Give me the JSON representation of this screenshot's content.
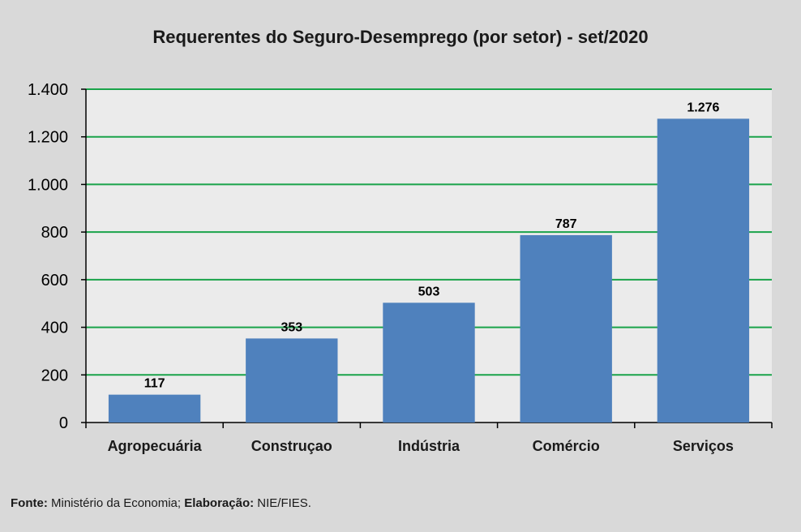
{
  "chart_data": {
    "type": "bar",
    "title": "Requerentes do Seguro-Desemprego (por setor) - set/2020",
    "categories": [
      "Agropecuária",
      "Construçao",
      "Indústria",
      "Comércio",
      "Serviços"
    ],
    "values": [
      117,
      353,
      503,
      787,
      1276
    ],
    "data_labels": [
      "117",
      "353",
      "503",
      "787",
      "1.276"
    ],
    "ylim": [
      0,
      1400
    ],
    "yticks": [
      0,
      200,
      400,
      600,
      800,
      1000,
      1200,
      1400
    ],
    "ytick_labels": [
      "0",
      "200",
      "400",
      "600",
      "800",
      "1.000",
      "1.200",
      "1.400"
    ],
    "xlabel": "",
    "ylabel": "",
    "grid": true,
    "legend": "none",
    "colors": {
      "bar": "#4f81bd",
      "grid": "#1aa34a",
      "plot_bg": "#ebebeb",
      "page_bg": "#d9d9d9"
    }
  },
  "footer": {
    "source_label": "Fonte:",
    "source_text": "Ministério da Economia;",
    "prepared_label": "Elaboração:",
    "prepared_text": "NIE/FIES."
  }
}
